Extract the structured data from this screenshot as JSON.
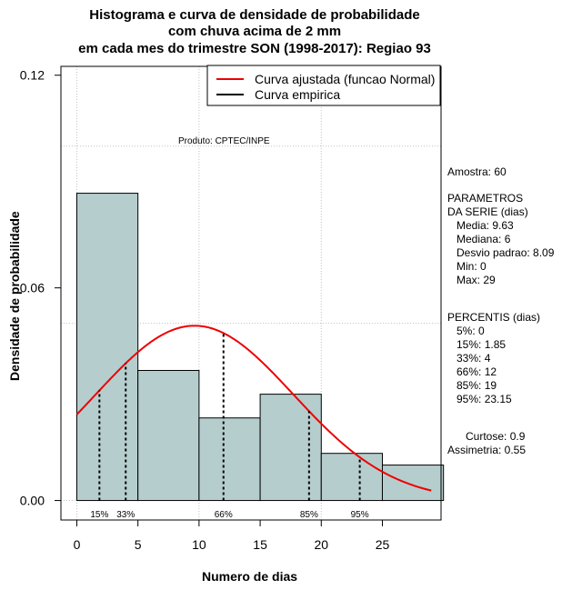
{
  "chart_data": {
    "type": "bar",
    "title_lines": [
      "Histograma e curva de densidade de probabilidade",
      "com chuva acima de 2 mm",
      "em cada mes do trimestre SON (1998-2017): Regiao 93"
    ],
    "xlabel": "Numero de dias",
    "ylabel": "Densidade de probabilidade",
    "xlim": [
      -1.3,
      29.8
    ],
    "ylim": [
      -0.0055,
      0.1225
    ],
    "x_ticks": [
      0,
      5,
      10,
      15,
      20,
      25
    ],
    "x_tick_labels": [
      "0",
      "5",
      "10",
      "15",
      "20",
      "25"
    ],
    "y_ticks": [
      0.0,
      0.06,
      0.12
    ],
    "y_tick_labels": [
      "0.00",
      "0.06",
      "0.12"
    ],
    "grid_x": [
      0,
      10,
      20
    ],
    "grid_y": [
      0.0,
      0.05,
      0.1
    ],
    "bins": [
      {
        "x0": 0,
        "x1": 5,
        "density": 0.0867
      },
      {
        "x0": 5,
        "x1": 10,
        "density": 0.0367
      },
      {
        "x0": 10,
        "x1": 15,
        "density": 0.0233
      },
      {
        "x0": 15,
        "x1": 20,
        "density": 0.03
      },
      {
        "x0": 20,
        "x1": 25,
        "density": 0.0133
      },
      {
        "x0": 25,
        "x1": 30,
        "density": 0.01
      }
    ],
    "normal_fit": {
      "mean": 9.63,
      "sd": 8.09,
      "x_from": 0,
      "x_to": 29
    },
    "percentile_lines": [
      {
        "x": 1.85,
        "label": "15%"
      },
      {
        "x": 4,
        "label": "33%"
      },
      {
        "x": 12,
        "label": "66%"
      },
      {
        "x": 19,
        "label": "85%"
      },
      {
        "x": 23.15,
        "label": "95%"
      }
    ],
    "legend": [
      {
        "label": "Curva ajustada (funcao Normal)",
        "color": "#ee0000"
      },
      {
        "label": "Curva empirica",
        "color": "#000000"
      }
    ],
    "legend_position": "top-right",
    "annotation": "Produto: CPTEC/INPE",
    "colors": {
      "bar": "#b6cdcd",
      "fit": "#ee0000",
      "grid": "#c0c0c0"
    }
  },
  "side_panel": {
    "amostra": "Amostra: 60",
    "parametros": "PARAMETROS\nDA SERIE (dias)\n   Media: 9.63\n   Mediana: 6\n   Desvio padrao: 8.09\n   Min: 0\n   Max: 29",
    "percentis": "PERCENTIS (dias)\n   5%: 0\n   15%: 1.85\n   33%: 4\n   66%: 12\n   85%: 19\n   95%: 23.15",
    "momentos": "      Curtose: 0.9\nAssimetria: 0.55"
  }
}
